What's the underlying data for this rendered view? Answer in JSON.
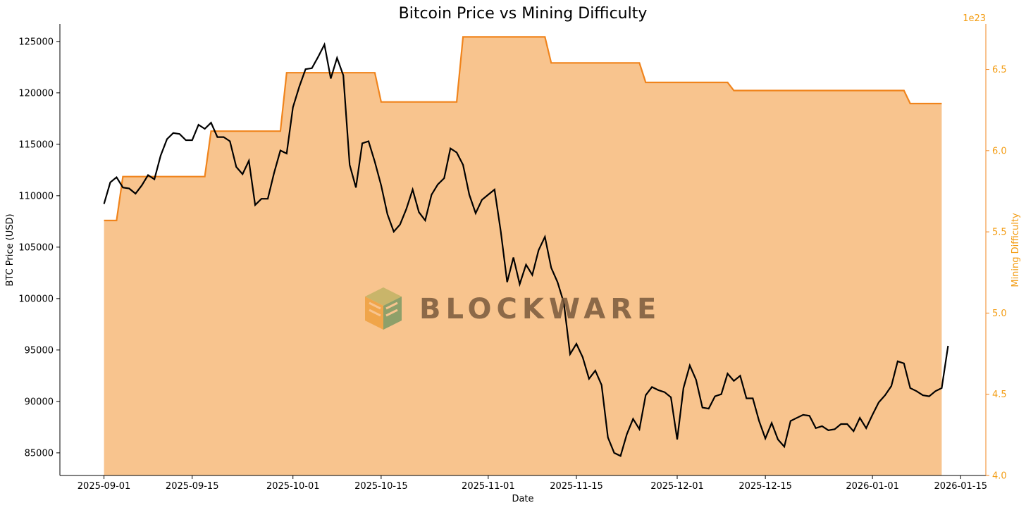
{
  "chart_data": {
    "type": "line",
    "title": "Bitcoin Price vs Mining Difficulty",
    "xlabel": "Date",
    "ylabel": "BTC Price (USD)",
    "y2label": "Mining Difficulty",
    "y2_offset_label": "1e23",
    "xlim": [
      "2025-08-25",
      "2026-01-19"
    ],
    "ylim": [
      82800,
      126700
    ],
    "y2lim": [
      4.0,
      6.78
    ],
    "x_ticks": [
      "2025-09-01",
      "2025-09-15",
      "2025-10-01",
      "2025-10-15",
      "2025-11-01",
      "2025-11-15",
      "2025-12-01",
      "2025-12-15",
      "2026-01-01",
      "2026-01-15"
    ],
    "y_ticks": [
      85000,
      90000,
      95000,
      100000,
      105000,
      110000,
      115000,
      120000,
      125000
    ],
    "y2_ticks": [
      "4.0",
      "4.5",
      "5.0",
      "5.5",
      "6.0",
      "6.5"
    ],
    "series": [
      {
        "name": "BTC Price (USD)",
        "color": "#000000",
        "start": "2025-09-01",
        "interval_days": 1,
        "values": [
          109200,
          111300,
          111800,
          110800,
          110700,
          110200,
          111000,
          112000,
          111600,
          113900,
          115500,
          116100,
          116000,
          115400,
          115400,
          116900,
          116500,
          117100,
          115700,
          115700,
          115300,
          112800,
          112100,
          113400,
          109100,
          109700,
          109700,
          112200,
          114400,
          114100,
          118600,
          120600,
          122300,
          122400,
          123500,
          124700,
          121400,
          123400,
          121700,
          113000,
          110800,
          115100,
          115300,
          113300,
          111000,
          108200,
          106500,
          107200,
          108700,
          110600,
          108400,
          107600,
          110100,
          111100,
          111700,
          114600,
          114200,
          113000,
          110100,
          108300,
          109600,
          110100,
          110600,
          106500,
          101600,
          104000,
          101400,
          103300,
          102300,
          104700,
          106000,
          103000,
          101600,
          99600,
          94600,
          95600,
          94300,
          92200,
          93000,
          91600,
          86500,
          85000,
          84700,
          86800,
          88300,
          87300,
          90600,
          91400,
          91100,
          90900,
          90400,
          86300,
          91300,
          93500,
          92100,
          89400,
          89300,
          90500,
          90700,
          92700,
          92000,
          92500,
          90300,
          90300,
          88100,
          86400,
          87900,
          86300,
          85600,
          88100,
          88400,
          88700,
          88600,
          87400,
          87600,
          87200,
          87300,
          87800,
          87800,
          87100,
          88400,
          87400,
          88700,
          89900,
          90600,
          91500,
          93900,
          93700,
          91300,
          91000,
          90600,
          90500,
          91000,
          91300,
          95400
        ]
      },
      {
        "name": "Mining Difficulty",
        "color": "#f0841c",
        "fill_color": "#f8c48e",
        "type": "step-area",
        "points": [
          {
            "date": "2025-09-01",
            "value": 5.57
          },
          {
            "date": "2025-09-04",
            "value": 5.84
          },
          {
            "date": "2025-09-18",
            "value": 6.12
          },
          {
            "date": "2025-09-30",
            "value": 6.48
          },
          {
            "date": "2025-10-15",
            "value": 6.3
          },
          {
            "date": "2025-10-28",
            "value": 6.7
          },
          {
            "date": "2025-11-11",
            "value": 6.54
          },
          {
            "date": "2025-11-26",
            "value": 6.42
          },
          {
            "date": "2025-12-10",
            "value": 6.37
          },
          {
            "date": "2025-12-24",
            "value": 6.37
          },
          {
            "date": "2026-01-07",
            "value": 6.29
          },
          {
            "date": "2026-01-12",
            "value": 6.29
          }
        ]
      }
    ]
  },
  "watermark": {
    "text": "BLOCKWARE",
    "logo": "blockware-cube-icon"
  }
}
